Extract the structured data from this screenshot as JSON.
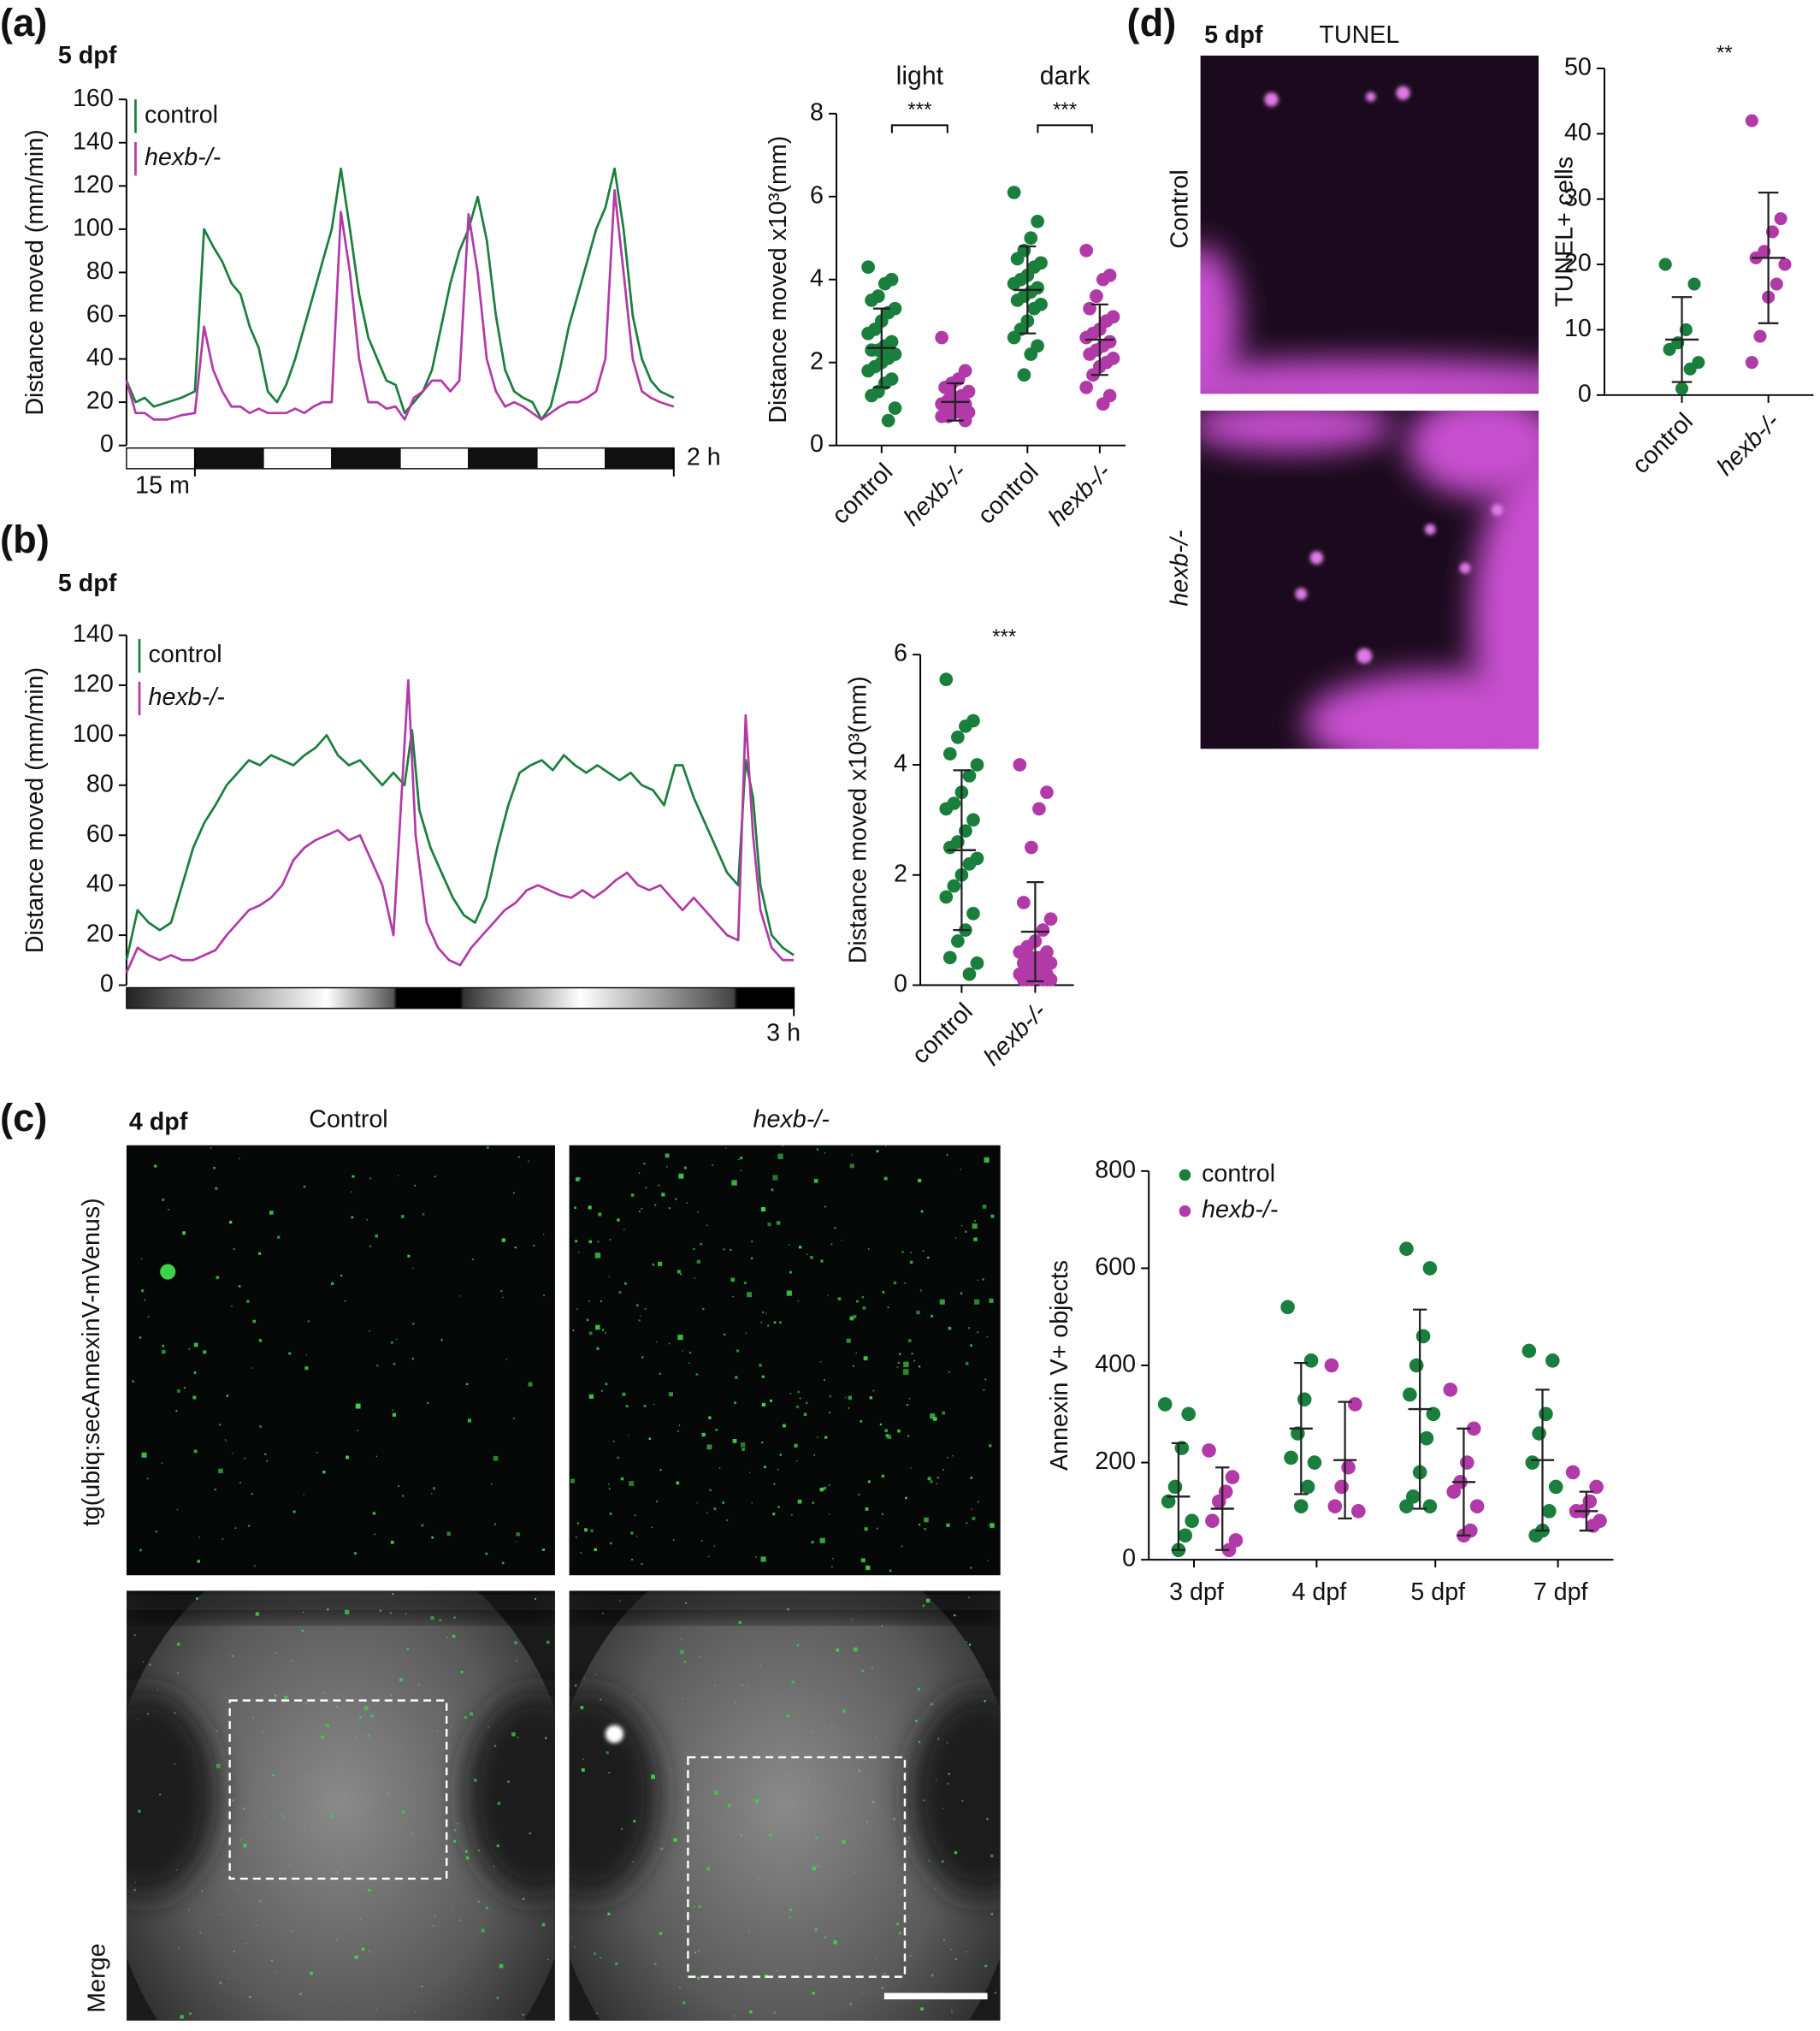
{
  "figure": {
    "a": {
      "label": "(a)",
      "stage": "5 dpf"
    },
    "b": {
      "label": "(b)",
      "stage": "5 dpf"
    },
    "c": {
      "label": "(c)",
      "stage": "4 dpf",
      "columns": [
        "Control",
        "hexb-/-"
      ],
      "rows": [
        "tg(ubiq:secAnnexinV-mVenus)",
        "Merge"
      ]
    },
    "d": {
      "label": "(d)",
      "stage": "5 dpf",
      "stain": "TUNEL",
      "rows": [
        "Control",
        "hexb-/-"
      ]
    }
  },
  "chart_data": [
    {
      "type": "line",
      "y_label": "Distance moved (mm/min)",
      "xlim": [
        0,
        120
      ],
      "xticks": [
        {
          "value": 15,
          "label": "15 m"
        },
        {
          "value": 120,
          "label": "2 h"
        }
      ],
      "ylim": [
        0,
        160
      ],
      "yticks": [
        0,
        20,
        40,
        60,
        80,
        100,
        120,
        140,
        160
      ],
      "series": [
        {
          "name": "control",
          "color": "#1a7f3c",
          "x": [
            0,
            2,
            4,
            6,
            9,
            12,
            15,
            17,
            19,
            21,
            23,
            25,
            27,
            29,
            31,
            33,
            35,
            37,
            39,
            41,
            43,
            45,
            47,
            49,
            51,
            53,
            55,
            57,
            59,
            61,
            63,
            65,
            67,
            69,
            71,
            73,
            75,
            77,
            79,
            81,
            83,
            85,
            87,
            89,
            91,
            93,
            95,
            97,
            99,
            101,
            103,
            105,
            107,
            109,
            111,
            113,
            115,
            117,
            120
          ],
          "values": [
            30,
            20,
            22,
            18,
            20,
            22,
            25,
            100,
            92,
            85,
            75,
            70,
            55,
            45,
            25,
            20,
            28,
            40,
            55,
            70,
            85,
            100,
            128,
            100,
            70,
            50,
            40,
            30,
            28,
            15,
            20,
            25,
            35,
            55,
            75,
            90,
            100,
            115,
            95,
            60,
            35,
            25,
            22,
            20,
            12,
            18,
            35,
            55,
            70,
            85,
            100,
            110,
            128,
            100,
            60,
            40,
            30,
            25,
            22
          ]
        },
        {
          "name": "hexb-/-",
          "color": "#b23aa8",
          "italic": true,
          "x": [
            0,
            2,
            4,
            6,
            9,
            12,
            15,
            17,
            19,
            21,
            23,
            25,
            27,
            29,
            31,
            33,
            35,
            37,
            39,
            41,
            43,
            45,
            47,
            49,
            51,
            53,
            55,
            57,
            59,
            61,
            63,
            65,
            67,
            69,
            71,
            73,
            75,
            77,
            79,
            81,
            83,
            85,
            87,
            89,
            91,
            93,
            95,
            97,
            99,
            101,
            103,
            105,
            107,
            109,
            111,
            113,
            115,
            117,
            120
          ],
          "values": [
            30,
            15,
            15,
            12,
            12,
            14,
            15,
            55,
            35,
            25,
            18,
            18,
            15,
            17,
            15,
            15,
            15,
            17,
            15,
            18,
            20,
            20,
            108,
            80,
            40,
            20,
            20,
            17,
            18,
            12,
            22,
            25,
            30,
            30,
            25,
            30,
            107,
            80,
            40,
            25,
            18,
            20,
            18,
            15,
            12,
            15,
            18,
            20,
            20,
            22,
            25,
            40,
            118,
            80,
            40,
            25,
            22,
            20,
            18
          ]
        }
      ]
    },
    {
      "type": "dot",
      "y_label": "Distance moved x10³(mm)",
      "ylim": [
        0,
        8
      ],
      "yticks": [
        0,
        2,
        4,
        6,
        8
      ],
      "categories": [
        "control",
        "hexb-/-",
        "control",
        "hexb-/-"
      ],
      "category_italic": [
        false,
        true,
        false,
        true
      ],
      "colors": [
        "#1a7f3c",
        "#b23aa8",
        "#1a7f3c",
        "#b23aa8"
      ],
      "groups": [
        {
          "label": "light",
          "annotation": "***"
        },
        {
          "label": "dark",
          "annotation": "***"
        }
      ],
      "points": [
        [
          4.3,
          4.0,
          3.9,
          3.6,
          3.5,
          3.3,
          3.2,
          3.0,
          2.8,
          2.7,
          2.5,
          2.4,
          2.3,
          2.3,
          2.2,
          2.1,
          2.0,
          1.9,
          1.8,
          1.6,
          1.5,
          1.3,
          1.2,
          0.9,
          0.6
        ],
        [
          2.6,
          1.8,
          1.6,
          1.5,
          1.4,
          1.3,
          1.2,
          1.1,
          1.1,
          1.0,
          1.0,
          0.9,
          0.9,
          0.9,
          0.8,
          0.8,
          0.8,
          0.7,
          0.7,
          0.6,
          1.0,
          1.2
        ],
        [
          6.1,
          5.4,
          5.0,
          4.7,
          4.5,
          4.4,
          4.3,
          4.1,
          4.0,
          3.9,
          3.8,
          3.7,
          3.6,
          3.5,
          3.4,
          3.3,
          3.0,
          2.8,
          2.6,
          2.4,
          2.2,
          1.7
        ],
        [
          4.7,
          4.1,
          4.0,
          3.6,
          3.3,
          3.1,
          3.0,
          2.8,
          2.7,
          2.6,
          2.5,
          2.4,
          2.3,
          2.2,
          2.1,
          2.0,
          1.9,
          1.7,
          1.4,
          1.2,
          1.0,
          3.6
        ]
      ],
      "means": [
        2.35,
        1.05,
        3.75,
        2.55
      ],
      "sd": [
        0.95,
        0.45,
        1.05,
        0.85
      ]
    },
    {
      "type": "line",
      "y_label": "Distance moved (mm/min)",
      "xlim": [
        0,
        180
      ],
      "xticks": [
        {
          "value": 180,
          "label": "3 h"
        }
      ],
      "ylim": [
        0,
        140
      ],
      "yticks": [
        0,
        20,
        40,
        60,
        80,
        100,
        120,
        140
      ],
      "series": [
        {
          "name": "control",
          "color": "#1a7f3c",
          "x": [
            0,
            3,
            6,
            9,
            12,
            15,
            18,
            21,
            24,
            27,
            30,
            33,
            36,
            39,
            42,
            45,
            48,
            51,
            54,
            57,
            60,
            63,
            66,
            69,
            72,
            75,
            77,
            79,
            82,
            85,
            88,
            91,
            94,
            97,
            100,
            103,
            106,
            109,
            112,
            115,
            118,
            121,
            124,
            127,
            130,
            133,
            136,
            139,
            142,
            145,
            148,
            150,
            153,
            156,
            159,
            162,
            165,
            167,
            169,
            171,
            174,
            177,
            180
          ],
          "values": [
            10,
            30,
            25,
            22,
            25,
            40,
            55,
            65,
            72,
            80,
            85,
            90,
            88,
            92,
            90,
            88,
            92,
            95,
            100,
            92,
            88,
            90,
            85,
            80,
            85,
            80,
            102,
            70,
            55,
            45,
            35,
            28,
            25,
            35,
            55,
            72,
            85,
            88,
            90,
            86,
            92,
            88,
            85,
            88,
            85,
            82,
            85,
            80,
            78,
            72,
            88,
            88,
            75,
            65,
            55,
            45,
            40,
            90,
            75,
            40,
            20,
            15,
            12
          ]
        },
        {
          "name": "hexb-/-",
          "color": "#b23aa8",
          "italic": true,
          "x": [
            0,
            3,
            6,
            9,
            12,
            15,
            18,
            21,
            24,
            27,
            30,
            33,
            36,
            39,
            42,
            45,
            48,
            51,
            54,
            57,
            60,
            63,
            66,
            69,
            72,
            76,
            78,
            81,
            84,
            87,
            90,
            93,
            96,
            99,
            102,
            105,
            108,
            111,
            114,
            117,
            120,
            123,
            126,
            129,
            132,
            135,
            138,
            141,
            144,
            147,
            150,
            153,
            156,
            159,
            162,
            165,
            167,
            169,
            171,
            174,
            177,
            180
          ],
          "values": [
            5,
            15,
            12,
            10,
            12,
            10,
            10,
            12,
            14,
            20,
            25,
            30,
            32,
            35,
            40,
            50,
            55,
            58,
            60,
            62,
            58,
            60,
            50,
            40,
            20,
            122,
            60,
            25,
            15,
            10,
            8,
            15,
            20,
            25,
            30,
            33,
            38,
            40,
            38,
            36,
            35,
            38,
            35,
            38,
            42,
            45,
            40,
            38,
            40,
            35,
            30,
            35,
            30,
            25,
            20,
            18,
            108,
            60,
            30,
            15,
            10,
            10
          ]
        }
      ]
    },
    {
      "type": "dot",
      "y_label": "Distance moved x10³(mm)",
      "ylim": [
        0,
        6
      ],
      "yticks": [
        0,
        2,
        4,
        6
      ],
      "categories": [
        "control",
        "hexb-/-"
      ],
      "category_italic": [
        false,
        true
      ],
      "colors": [
        "#1a7f3c",
        "#b23aa8"
      ],
      "annotation": "***",
      "points": [
        [
          5.55,
          4.8,
          4.7,
          4.5,
          4.2,
          4.0,
          3.8,
          3.5,
          3.3,
          3.2,
          3.0,
          2.8,
          2.6,
          2.5,
          2.3,
          2.2,
          2.0,
          1.8,
          1.6,
          1.3,
          1.0,
          0.8,
          0.5,
          0.4,
          0.2
        ],
        [
          4.0,
          3.5,
          3.2,
          2.5,
          1.5,
          1.2,
          1.0,
          0.8,
          0.7,
          0.6,
          0.6,
          0.5,
          0.5,
          0.4,
          0.4,
          0.3,
          0.3,
          0.3,
          0.2,
          0.2,
          0.2,
          0.1,
          0.1,
          0.1,
          0.1
        ]
      ],
      "means": [
        2.45,
        0.97
      ],
      "sd": [
        1.45,
        0.9
      ]
    },
    {
      "type": "dot",
      "y_label": "Annexin V+ objects",
      "ylim": [
        0,
        800
      ],
      "yticks": [
        0,
        200,
        400,
        600,
        800
      ],
      "categories": [
        "3 dpf",
        "4 dpf",
        "5 dpf",
        "7 dpf"
      ],
      "series": [
        {
          "name": "control",
          "color": "#1a7f3c",
          "points": [
            [
              320,
              300,
              230,
              150,
              120,
              80,
              50,
              20
            ],
            [
              520,
              410,
              330,
              260,
              210,
              200,
              150,
              110
            ],
            [
              640,
              600,
              460,
              400,
              340,
              300,
              250,
              180,
              130,
              110,
              110
            ],
            [
              430,
              410,
              300,
              260,
              200,
              150,
              100,
              60,
              50
            ]
          ],
          "means": [
            130,
            270,
            310,
            205
          ],
          "sd": [
            110,
            135,
            205,
            145
          ]
        },
        {
          "name": "hexb-/-",
          "color": "#b23aa8",
          "italic": true,
          "points": [
            [
              225,
              170,
              140,
              120,
              80,
              40,
              20
            ],
            [
              400,
              320,
              190,
              150,
              110,
              100
            ],
            [
              350,
              270,
              200,
              160,
              140,
              110,
              60,
              50
            ],
            [
              180,
              150,
              120,
              100,
              100,
              80,
              70
            ]
          ],
          "means": [
            105,
            205,
            160,
            100
          ],
          "sd": [
            85,
            120,
            110,
            40
          ]
        }
      ]
    },
    {
      "type": "dot",
      "y_label": "TUNEL+ cells",
      "ylim": [
        0,
        50
      ],
      "yticks": [
        0,
        10,
        20,
        30,
        40,
        50
      ],
      "categories": [
        "control",
        "hexb-/-"
      ],
      "category_italic": [
        false,
        true
      ],
      "colors": [
        "#1a7f3c",
        "#b23aa8"
      ],
      "annotation": "**",
      "points": [
        [
          20,
          17,
          10,
          8,
          7,
          5,
          4,
          1
        ],
        [
          42,
          27,
          25,
          22,
          21,
          20,
          17,
          15,
          9,
          5
        ]
      ],
      "means": [
        8.5,
        21
      ],
      "sd": [
        6.5,
        10
      ]
    }
  ]
}
